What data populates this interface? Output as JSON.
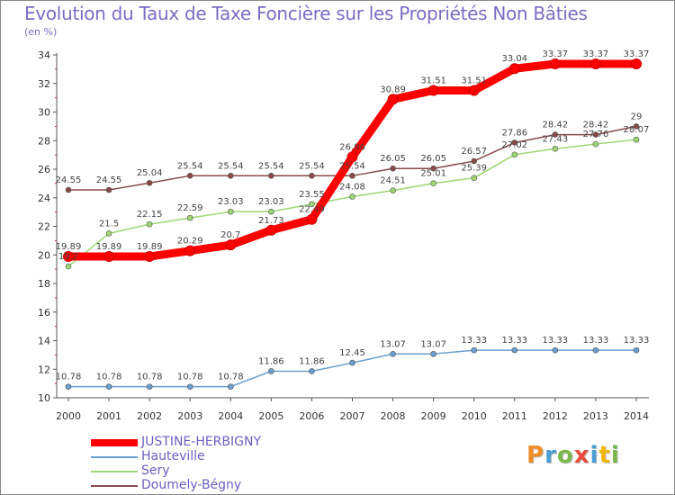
{
  "title": "Evolution du Taux de Taxe Foncière sur les Propriétés Non Bâties",
  "ylabel_text": "(en %)",
  "brand": {
    "text": "Proxiti",
    "colors": [
      "#f28c28",
      "#4a9fd8",
      "#7ab648",
      "#e94b3c",
      "#4a9fd8",
      "#f2b705",
      "#7ab648"
    ]
  },
  "chart_data": {
    "type": "line",
    "title": "Evolution du Taux de Taxe Foncière sur les Propriétés Non Bâties",
    "ylabel": "(en %)",
    "xlabel": "",
    "ylim": [
      10,
      34
    ],
    "yticks": [
      10,
      12,
      14,
      16,
      18,
      20,
      22,
      24,
      26,
      28,
      30,
      32,
      34
    ],
    "grid": false,
    "legend_position": "bottom-left",
    "x": [
      "2000",
      "2001",
      "2002",
      "2003",
      "2004",
      "2005",
      "2006",
      "2007",
      "2008",
      "2009",
      "2010",
      "2011",
      "2012",
      "2013",
      "2014"
    ],
    "series": [
      {
        "name": "JUSTINE-HERBIGNY",
        "color": "#ff0000",
        "values": [
          19.89,
          19.89,
          19.89,
          20.29,
          20.7,
          21.73,
          22.49,
          26.86,
          30.89,
          31.51,
          31.51,
          33.04,
          33.37,
          33.37,
          33.37
        ],
        "labels": [
          "19.89",
          "19.89",
          "19.89",
          "20.29",
          "20.7",
          "21.73",
          "22.49",
          "26.86",
          "30.89",
          "31.51",
          "31.51",
          "33.04",
          "33.37",
          "33.37",
          "33.37"
        ]
      },
      {
        "name": "Hauteville",
        "color": "#6a9fd0",
        "values": [
          10.78,
          10.78,
          10.78,
          10.78,
          10.78,
          11.86,
          11.86,
          12.45,
          13.07,
          13.07,
          13.33,
          13.33,
          13.33,
          13.33,
          13.33
        ],
        "labels": [
          "10.78",
          "10.78",
          "10.78",
          "10.78",
          "10.78",
          "11.86",
          "11.86",
          "12.45",
          "13.07",
          "13.07",
          "13.33",
          "13.33",
          "13.33",
          "13.33",
          "13.33"
        ]
      },
      {
        "name": "Sery",
        "color": "#9ed672",
        "values": [
          19.2,
          21.5,
          22.15,
          22.59,
          23.03,
          23.03,
          23.55,
          24.08,
          24.51,
          25.01,
          25.39,
          27.02,
          27.43,
          27.76,
          28.07
        ],
        "labels": [
          "19.2",
          "21.5",
          "22.15",
          "22.59",
          "23.03",
          "23.03",
          "23.55",
          "24.08",
          "24.51",
          "25.01",
          "25.39",
          "27.02",
          "27.43",
          "27.76",
          "28.07"
        ]
      },
      {
        "name": "Doumely-Bégny",
        "color": "#8a4a4a",
        "values": [
          24.55,
          24.55,
          25.04,
          25.54,
          25.54,
          25.54,
          25.54,
          25.54,
          26.05,
          26.05,
          26.57,
          27.86,
          28.42,
          28.42,
          29
        ],
        "labels": [
          "24.55",
          "24.55",
          "25.04",
          "25.54",
          "25.54",
          "25.54",
          "25.54",
          "25.54",
          "26.05",
          "26.05",
          "26.57",
          "27.86",
          "28.42",
          "28.42",
          "29"
        ]
      }
    ]
  }
}
